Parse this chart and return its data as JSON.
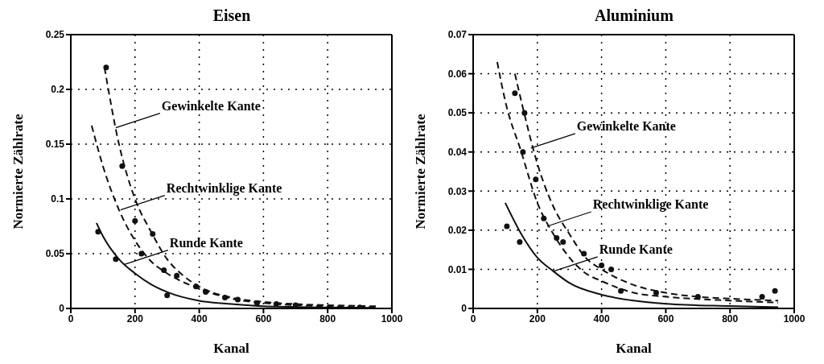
{
  "chart_data": [
    {
      "type": "line",
      "title": "Eisen",
      "xlabel": "Kanal",
      "ylabel": "Normierte Zählrate",
      "xlim": [
        0,
        1000
      ],
      "xticks": [
        0,
        200,
        400,
        600,
        800,
        1000
      ],
      "ylim": [
        0,
        0.25
      ],
      "yticks": [
        0,
        0.05,
        0.1,
        0.15,
        0.2,
        0.25
      ],
      "grid": true,
      "series": [
        {
          "color": "#111111",
          "line_style": "dashed",
          "x": [
            105,
            150,
            200,
            250,
            300,
            350,
            400,
            500,
            600,
            700,
            800,
            950
          ],
          "values": [
            0.22,
            0.15,
            0.1,
            0.07,
            0.045,
            0.03,
            0.02,
            0.01,
            0.006,
            0.004,
            0.003,
            0.002
          ]
        },
        {
          "color": "#111111",
          "line_style": "dashed",
          "x": [
            65,
            100,
            150,
            200,
            250,
            300,
            400,
            500,
            600,
            800,
            950
          ],
          "values": [
            0.167,
            0.13,
            0.09,
            0.062,
            0.043,
            0.032,
            0.018,
            0.009,
            0.005,
            0.002,
            0.001
          ]
        },
        {
          "color": "#111111",
          "line_style": "solid",
          "x": [
            80,
            100,
            150,
            200,
            250,
            300,
            400,
            500,
            600,
            800,
            950
          ],
          "values": [
            0.078,
            0.066,
            0.045,
            0.032,
            0.022,
            0.015,
            0.007,
            0.004,
            0.002,
            0.001,
            0.0005
          ]
        },
        {
          "type": "scatter",
          "color": "#111111",
          "marker": "circle",
          "x": [
            110,
            160,
            200,
            220,
            255,
            290,
            330,
            390,
            420,
            480,
            520,
            580,
            640,
            700,
            900,
            85,
            140,
            300
          ],
          "values": [
            0.22,
            0.13,
            0.08,
            0.05,
            0.068,
            0.035,
            0.03,
            0.02,
            0.015,
            0.01,
            0.008,
            0.005,
            0.004,
            0.003,
            0.001,
            0.07,
            0.045,
            0.012
          ]
        }
      ],
      "annotations": [
        {
          "text": "Gewinkelte Kante",
          "x": 140,
          "y": 0.165
        },
        {
          "text": "Rechtwinklige Kante",
          "x": 155,
          "y": 0.09
        },
        {
          "text": "Runde Kante",
          "x": 165,
          "y": 0.04
        }
      ]
    },
    {
      "type": "line",
      "title": "Aluminium",
      "xlabel": "Kanal",
      "ylabel": "Normierte Zählrate",
      "xlim": [
        0,
        1000
      ],
      "xticks": [
        0,
        200,
        400,
        600,
        800,
        1000
      ],
      "ylim": [
        0,
        0.07
      ],
      "yticks": [
        0,
        0.01,
        0.02,
        0.03,
        0.04,
        0.05,
        0.06,
        0.07
      ],
      "grid": true,
      "series": [
        {
          "color": "#111111",
          "line_style": "dashed",
          "x": [
            130,
            150,
            200,
            250,
            300,
            350,
            400,
            500,
            600,
            700,
            800,
            950
          ],
          "values": [
            0.06,
            0.053,
            0.037,
            0.026,
            0.019,
            0.013,
            0.01,
            0.006,
            0.004,
            0.003,
            0.0025,
            0.002
          ]
        },
        {
          "color": "#111111",
          "line_style": "dashed",
          "x": [
            75,
            100,
            150,
            200,
            250,
            300,
            350,
            400,
            500,
            600,
            800,
            950
          ],
          "values": [
            0.063,
            0.053,
            0.04,
            0.027,
            0.019,
            0.013,
            0.009,
            0.007,
            0.004,
            0.003,
            0.002,
            0.0015
          ]
        },
        {
          "color": "#111111",
          "line_style": "solid",
          "x": [
            100,
            150,
            200,
            250,
            300,
            400,
            500,
            600,
            800,
            950
          ],
          "values": [
            0.027,
            0.019,
            0.013,
            0.0095,
            0.0065,
            0.0035,
            0.002,
            0.0012,
            0.0006,
            0.0003
          ]
        },
        {
          "type": "scatter",
          "color": "#111111",
          "marker": "circle",
          "x": [
            130,
            160,
            155,
            195,
            220,
            260,
            280,
            345,
            400,
            430,
            460,
            570,
            700,
            900,
            940,
            105,
            145
          ],
          "values": [
            0.055,
            0.05,
            0.04,
            0.033,
            0.023,
            0.018,
            0.017,
            0.014,
            0.011,
            0.01,
            0.0045,
            0.004,
            0.003,
            0.003,
            0.0045,
            0.021,
            0.017
          ]
        }
      ],
      "annotations": [
        {
          "text": "Gewinkelte Kante",
          "x": 180,
          "y": 0.041
        },
        {
          "text": "Rechtwinklige Kante",
          "x": 230,
          "y": 0.021
        },
        {
          "text": "Runde Kante",
          "x": 250,
          "y": 0.0095
        }
      ]
    }
  ]
}
